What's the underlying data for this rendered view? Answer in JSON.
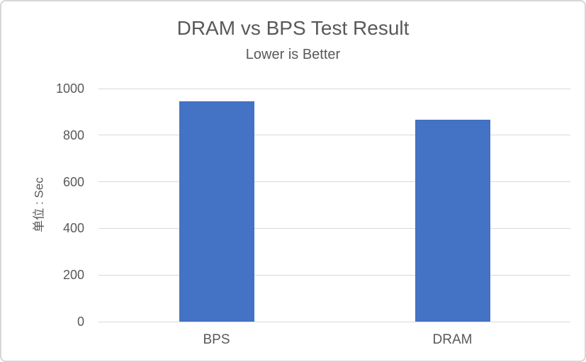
{
  "chart_data": {
    "type": "bar",
    "title": "DRAM vs BPS Test Result",
    "subtitle": "Lower is Better",
    "categories": [
      "BPS",
      "DRAM"
    ],
    "values": [
      945,
      865
    ],
    "xlabel": "",
    "ylabel": "单位 : Sec",
    "ylim": [
      0,
      1000
    ],
    "yticks": [
      0,
      200,
      400,
      600,
      800,
      1000
    ],
    "grid": true,
    "legend": "none",
    "bar_color": "#4472C4",
    "text_color": "#595959",
    "gridline_color": "#D9D9D9",
    "border_color": "#D7D7D7",
    "background_color": "#FFFFFF"
  }
}
